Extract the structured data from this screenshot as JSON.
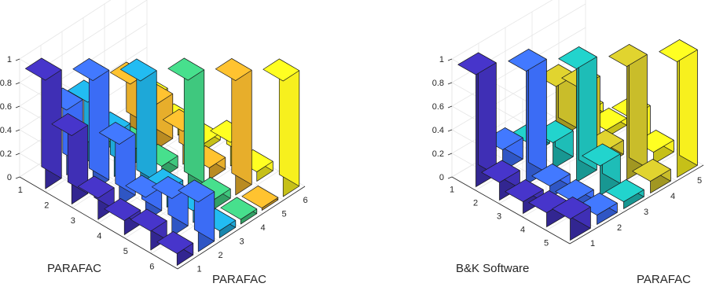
{
  "chart_data": [
    {
      "type": "bar3d",
      "title": "",
      "xlabel": "PARAFAC",
      "ylabel": "PARAFAC",
      "zlim": [
        0,
        1
      ],
      "z_ticks": [
        "0",
        "0.2",
        "0.4",
        "0.6",
        "0.8",
        "1"
      ],
      "row_ticks": [
        "1",
        "2",
        "3",
        "4",
        "5",
        "6"
      ],
      "col_ticks": [
        "1",
        "2",
        "3",
        "4",
        "5",
        "6"
      ],
      "column_colors": [
        "#3f2fb5",
        "#3b6cf5",
        "#1ea8d8",
        "#3fc87e",
        "#e7ae2b",
        "#f7f01e"
      ],
      "values": [
        [
          0.92,
          0.55,
          0.5,
          0.05,
          0.42,
          0.18
        ],
        [
          0.58,
          0.93,
          0.36,
          0.12,
          0.38,
          0.08
        ],
        [
          0.18,
          0.52,
          0.94,
          0.1,
          0.28,
          0.06
        ],
        [
          0.12,
          0.2,
          0.14,
          0.96,
          0.1,
          0.2
        ],
        [
          0.16,
          0.32,
          0.1,
          0.08,
          0.97,
          0.08
        ],
        [
          0.1,
          0.42,
          0.06,
          0.04,
          0.02,
          0.98
        ]
      ]
    },
    {
      "type": "bar3d",
      "title": "",
      "xlabel": "B&K Software",
      "ylabel": "PARAFAC",
      "zlim": [
        0,
        1
      ],
      "z_ticks": [
        "0",
        "0.2",
        "0.4",
        "0.6",
        "0.8",
        "1"
      ],
      "row_ticks": [
        "1",
        "2",
        "3",
        "4",
        "5"
      ],
      "col_ticks": [
        "1",
        "2",
        "3",
        "4",
        "5"
      ],
      "column_colors": [
        "#3f2fb5",
        "#3b6cf5",
        "#1ebdb7",
        "#c9bd2a",
        "#f7f01e"
      ],
      "values": [
        [
          0.95,
          0.18,
          0.1,
          0.45,
          0.08
        ],
        [
          0.15,
          0.96,
          0.22,
          0.55,
          0.06
        ],
        [
          0.1,
          0.1,
          0.96,
          0.12,
          0.28
        ],
        [
          0.12,
          0.08,
          0.25,
          0.96,
          0.1
        ],
        [
          0.18,
          0.08,
          0.06,
          0.1,
          0.98
        ]
      ]
    }
  ]
}
